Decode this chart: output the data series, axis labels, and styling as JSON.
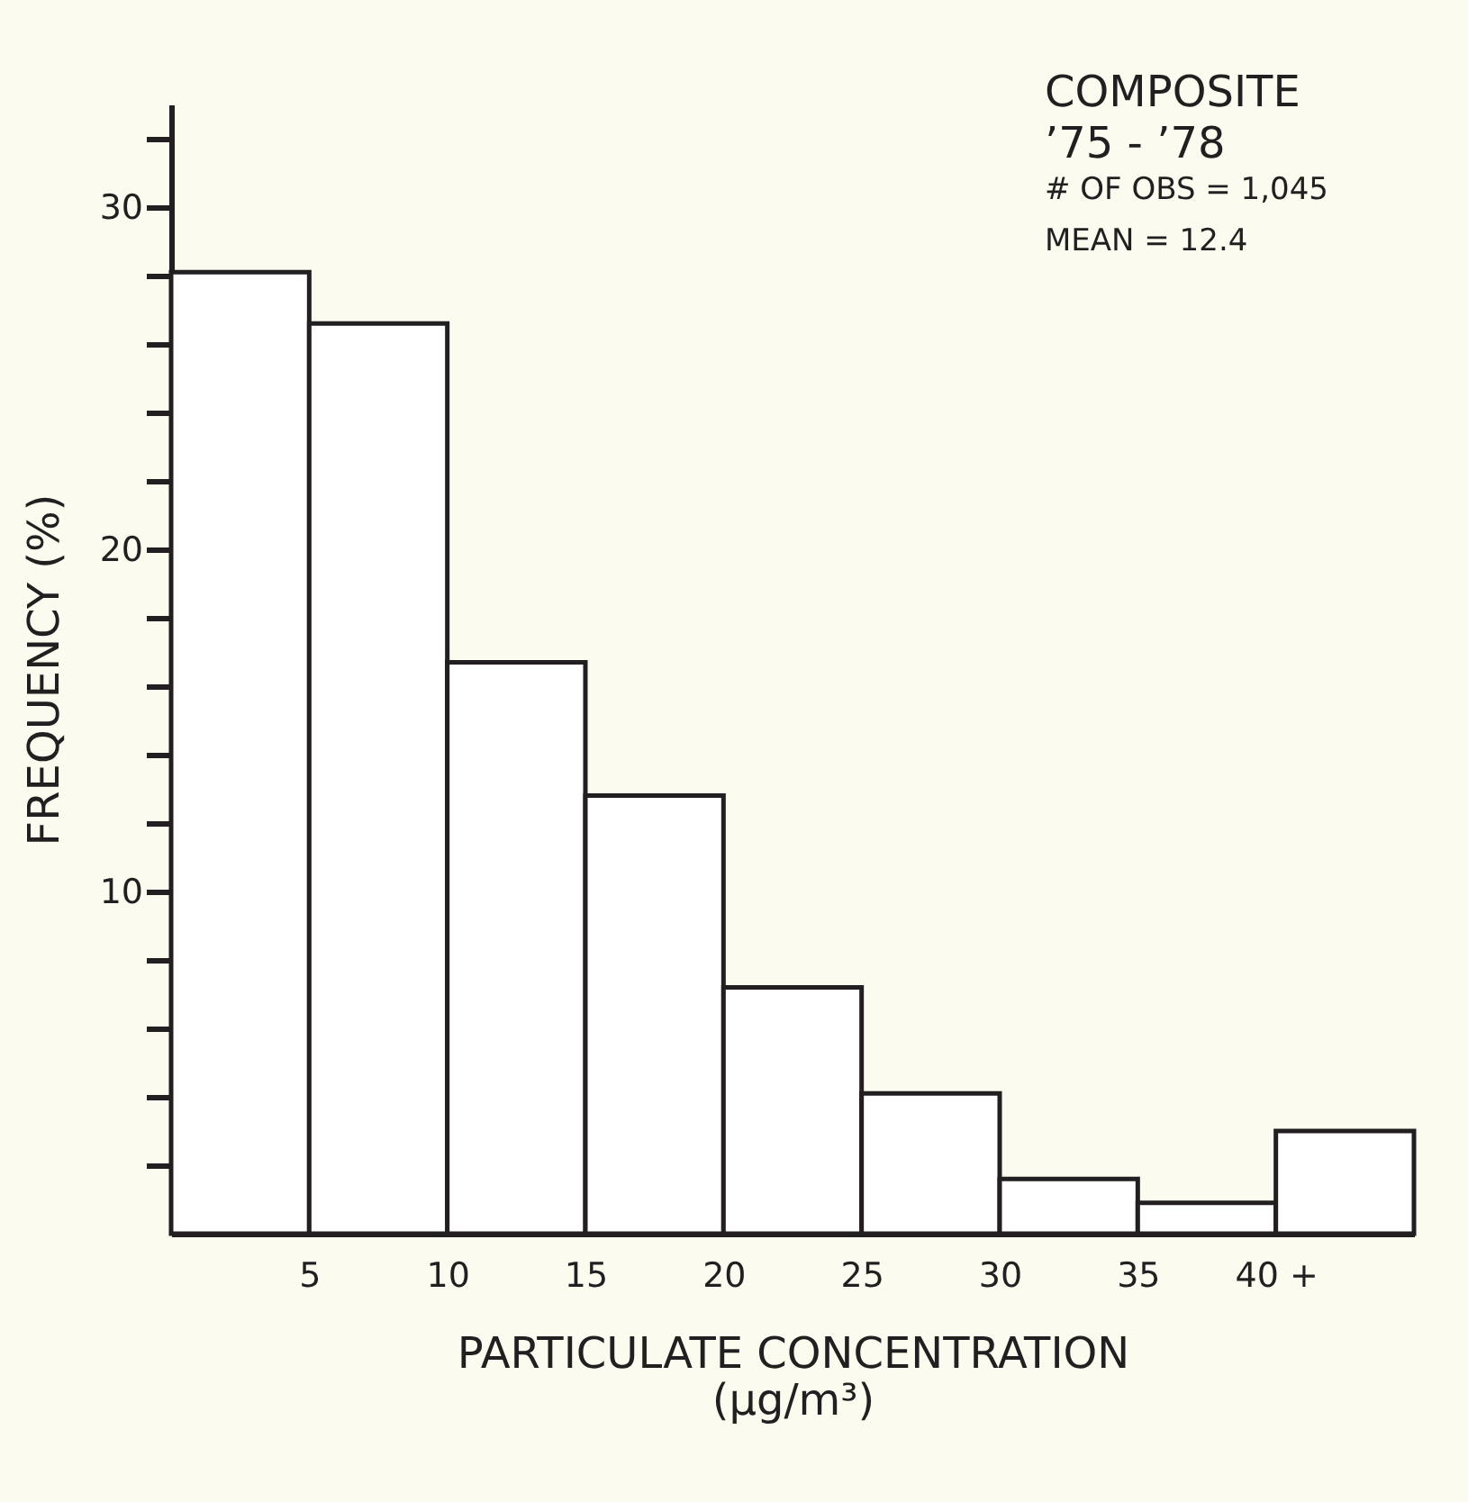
{
  "chart_data": {
    "type": "histogram",
    "xlabel": "PARTICULATE CONCENTRATION\n(µg/m³)",
    "ylabel": "FREQUENCY (%)",
    "bins": [
      0,
      5,
      10,
      15,
      20,
      25,
      30,
      35,
      40,
      45
    ],
    "values": [
      28.1,
      26.6,
      16.7,
      12.8,
      7.2,
      4.1,
      1.6,
      0.9,
      3.0
    ],
    "color": "#ffffff",
    "xlim": [
      0,
      45
    ],
    "xticks": [
      5,
      10,
      15,
      20,
      25,
      30,
      35,
      {
        "value": 40,
        "label": "40 +"
      }
    ],
    "ylim": [
      0,
      33
    ],
    "yticks": [
      {
        "value": 2,
        "label": null
      },
      {
        "value": 4,
        "label": null
      },
      {
        "value": 6,
        "label": null
      },
      {
        "value": 8,
        "label": null
      },
      10,
      {
        "value": 12,
        "label": null
      },
      {
        "value": 14,
        "label": null
      },
      {
        "value": 16,
        "label": null
      },
      {
        "value": 18,
        "label": null
      },
      20,
      {
        "value": 22,
        "label": null
      },
      {
        "value": 24,
        "label": null
      },
      {
        "value": 26,
        "label": null
      },
      {
        "value": 28,
        "label": null
      },
      30,
      {
        "value": 32,
        "label": null
      }
    ],
    "grid": false,
    "annotations": [
      "COMPOSITE",
      "’75 - ’78",
      "# OF OBS = 1,045",
      "MEAN = 12.4"
    ]
  }
}
